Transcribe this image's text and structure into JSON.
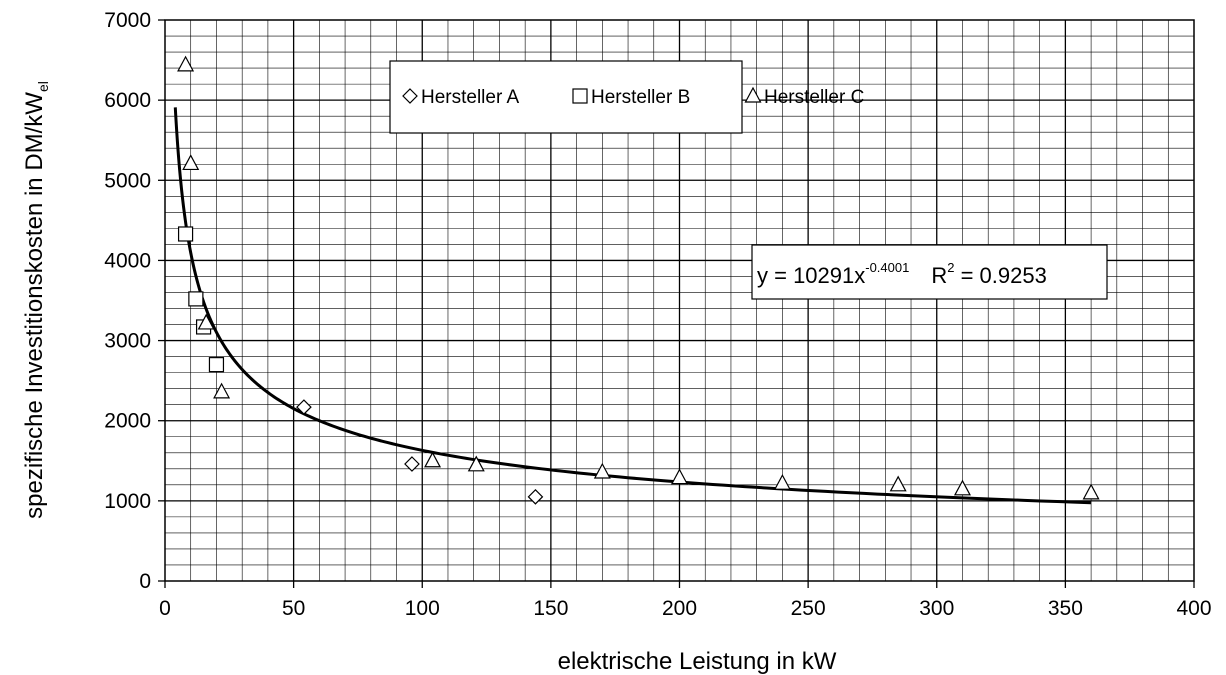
{
  "chart_data": {
    "type": "scatter",
    "xlabel": "elektrische Leistung  in kW",
    "ylabel_main": "spezifische Investitionskosten in DM/kW",
    "ylabel_sub": "el",
    "xlim": [
      0,
      400
    ],
    "ylim": [
      0,
      7000
    ],
    "x_ticks": [
      "0",
      "50",
      "100",
      "150",
      "200",
      "250",
      "300",
      "350",
      "400"
    ],
    "y_ticks": [
      "0",
      "1000",
      "2000",
      "3000",
      "4000",
      "5000",
      "6000",
      "7000"
    ],
    "grid": true,
    "legend_position": "top-center",
    "series": [
      {
        "name": "Hersteller A",
        "marker": "diamond",
        "points": [
          [
            54,
            2170
          ],
          [
            96,
            1460
          ],
          [
            144,
            1050
          ]
        ]
      },
      {
        "name": "Hersteller B",
        "marker": "square",
        "points": [
          [
            8,
            4330
          ],
          [
            12,
            3520
          ],
          [
            15,
            3170
          ],
          [
            20,
            2700
          ]
        ]
      },
      {
        "name": "Hersteller C",
        "marker": "triangle",
        "points": [
          [
            8,
            6440
          ],
          [
            10,
            5210
          ],
          [
            16,
            3220
          ],
          [
            22,
            2360
          ],
          [
            104,
            1500
          ],
          [
            121,
            1450
          ],
          [
            170,
            1360
          ],
          [
            200,
            1290
          ],
          [
            240,
            1220
          ],
          [
            285,
            1200
          ],
          [
            310,
            1150
          ],
          [
            360,
            1100
          ]
        ]
      }
    ],
    "trendline": {
      "type": "power",
      "a": 10291,
      "b": -0.4001,
      "x_range": [
        4,
        360
      ],
      "label": {
        "prefix": "y = 10291x",
        "exponent": "-0.4001",
        "r_prefix": "R",
        "r_exponent": "2",
        "r_value": " = 0.9253"
      }
    }
  }
}
